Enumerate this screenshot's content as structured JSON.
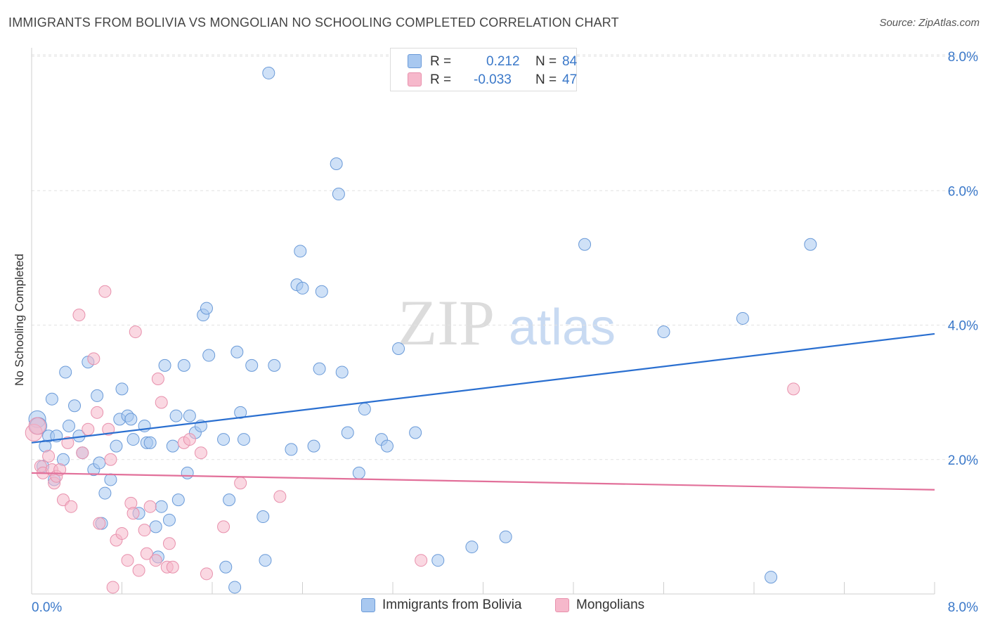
{
  "header": {
    "title": "IMMIGRANTS FROM BOLIVIA VS MONGOLIAN NO SCHOOLING COMPLETED CORRELATION CHART",
    "source": "Source: ZipAtlas.com"
  },
  "watermark": {
    "zip": "ZIP",
    "atlas": "atlas"
  },
  "legend_stats": [
    {
      "r_label": "R =",
      "r_value": "0.212",
      "n_label": "N =",
      "n_value": "84",
      "color": "#a8c8f0"
    },
    {
      "r_label": "R =",
      "r_value": "-0.033",
      "n_label": "N =",
      "n_value": "47",
      "color": "#f6b8cb"
    }
  ],
  "legend": [
    {
      "label": "Immigrants from Bolivia",
      "color": "#a8c8f0"
    },
    {
      "label": "Mongolians",
      "color": "#f6b8cb"
    }
  ],
  "chart_data": {
    "type": "scatter",
    "title": "IMMIGRANTS FROM BOLIVIA VS MONGOLIAN NO SCHOOLING COMPLETED CORRELATION CHART",
    "xlabel": "",
    "ylabel": "No Schooling Completed",
    "xlim": [
      0,
      8
    ],
    "ylim": [
      0,
      8
    ],
    "x_tick_labels": [
      "0.0%",
      "8.0%"
    ],
    "y_tick_labels": [
      "2.0%",
      "4.0%",
      "6.0%",
      "8.0%"
    ],
    "y_ticks": [
      2,
      4,
      6,
      8
    ],
    "grid": true,
    "series": [
      {
        "name": "Immigrants from Bolivia",
        "color": "#a8c8f0",
        "stroke": "#6a9ad8",
        "trend": {
          "x": [
            0,
            8
          ],
          "y": [
            2.25,
            3.87
          ],
          "color": "#2a6fd0"
        },
        "points": [
          [
            0.05,
            2.6
          ],
          [
            0.06,
            2.5
          ],
          [
            0.1,
            1.9
          ],
          [
            0.12,
            2.2
          ],
          [
            0.15,
            2.35
          ],
          [
            0.18,
            2.9
          ],
          [
            0.2,
            1.7
          ],
          [
            0.28,
            2.0
          ],
          [
            0.3,
            3.3
          ],
          [
            0.33,
            2.5
          ],
          [
            0.38,
            2.8
          ],
          [
            0.42,
            2.35
          ],
          [
            0.45,
            2.1
          ],
          [
            0.5,
            3.45
          ],
          [
            0.55,
            1.85
          ],
          [
            0.58,
            2.95
          ],
          [
            0.6,
            1.95
          ],
          [
            0.62,
            1.05
          ],
          [
            0.65,
            1.5
          ],
          [
            0.7,
            1.7
          ],
          [
            0.75,
            2.2
          ],
          [
            0.78,
            2.6
          ],
          [
            0.8,
            3.05
          ],
          [
            0.85,
            2.65
          ],
          [
            0.88,
            2.6
          ],
          [
            0.9,
            2.3
          ],
          [
            0.95,
            1.2
          ],
          [
            1.0,
            2.5
          ],
          [
            1.02,
            2.25
          ],
          [
            1.05,
            2.25
          ],
          [
            1.1,
            1.0
          ],
          [
            1.12,
            0.55
          ],
          [
            1.15,
            1.3
          ],
          [
            1.18,
            3.4
          ],
          [
            1.22,
            1.1
          ],
          [
            1.25,
            2.2
          ],
          [
            1.28,
            2.65
          ],
          [
            1.3,
            1.4
          ],
          [
            1.35,
            3.4
          ],
          [
            1.38,
            1.8
          ],
          [
            1.4,
            2.65
          ],
          [
            1.45,
            2.4
          ],
          [
            1.5,
            2.5
          ],
          [
            1.52,
            4.15
          ],
          [
            1.55,
            4.25
          ],
          [
            1.57,
            3.55
          ],
          [
            1.7,
            2.3
          ],
          [
            1.72,
            0.4
          ],
          [
            1.75,
            1.4
          ],
          [
            1.8,
            0.1
          ],
          [
            1.82,
            3.6
          ],
          [
            1.85,
            2.7
          ],
          [
            1.88,
            2.3
          ],
          [
            1.95,
            3.4
          ],
          [
            2.05,
            1.15
          ],
          [
            2.07,
            0.5
          ],
          [
            2.1,
            7.75
          ],
          [
            2.15,
            3.4
          ],
          [
            2.3,
            2.15
          ],
          [
            2.35,
            4.6
          ],
          [
            2.38,
            5.1
          ],
          [
            2.4,
            4.55
          ],
          [
            2.5,
            2.2
          ],
          [
            2.55,
            3.35
          ],
          [
            2.57,
            4.5
          ],
          [
            2.7,
            6.4
          ],
          [
            2.72,
            5.95
          ],
          [
            2.75,
            3.3
          ],
          [
            2.8,
            2.4
          ],
          [
            2.9,
            1.8
          ],
          [
            2.95,
            2.75
          ],
          [
            3.1,
            2.3
          ],
          [
            3.15,
            2.2
          ],
          [
            3.25,
            3.65
          ],
          [
            3.4,
            2.4
          ],
          [
            3.6,
            0.5
          ],
          [
            3.9,
            0.7
          ],
          [
            4.2,
            0.85
          ],
          [
            4.9,
            5.2
          ],
          [
            5.6,
            3.9
          ],
          [
            6.3,
            4.1
          ],
          [
            6.55,
            0.25
          ],
          [
            6.9,
            5.2
          ],
          [
            0.22,
            2.35
          ]
        ]
      },
      {
        "name": "Mongolians",
        "color": "#f6b8cb",
        "stroke": "#e890ac",
        "trend": {
          "x": [
            0,
            8
          ],
          "y": [
            1.8,
            1.55
          ],
          "color": "#e2709a"
        },
        "points": [
          [
            0.02,
            2.4
          ],
          [
            0.05,
            2.5
          ],
          [
            0.08,
            1.9
          ],
          [
            0.1,
            1.8
          ],
          [
            0.15,
            2.05
          ],
          [
            0.18,
            1.85
          ],
          [
            0.2,
            1.65
          ],
          [
            0.22,
            1.75
          ],
          [
            0.25,
            1.85
          ],
          [
            0.28,
            1.4
          ],
          [
            0.32,
            2.25
          ],
          [
            0.35,
            1.3
          ],
          [
            0.42,
            4.15
          ],
          [
            0.45,
            2.1
          ],
          [
            0.5,
            2.45
          ],
          [
            0.55,
            3.5
          ],
          [
            0.58,
            2.7
          ],
          [
            0.6,
            1.05
          ],
          [
            0.65,
            4.5
          ],
          [
            0.68,
            2.45
          ],
          [
            0.7,
            2.0
          ],
          [
            0.72,
            0.1
          ],
          [
            0.75,
            0.8
          ],
          [
            0.8,
            0.9
          ],
          [
            0.85,
            0.5
          ],
          [
            0.88,
            1.35
          ],
          [
            0.9,
            1.2
          ],
          [
            0.92,
            3.9
          ],
          [
            0.95,
            0.35
          ],
          [
            1.0,
            0.95
          ],
          [
            1.02,
            0.6
          ],
          [
            1.05,
            1.3
          ],
          [
            1.1,
            0.5
          ],
          [
            1.12,
            3.2
          ],
          [
            1.15,
            2.85
          ],
          [
            1.2,
            0.4
          ],
          [
            1.22,
            0.75
          ],
          [
            1.25,
            0.4
          ],
          [
            1.35,
            2.25
          ],
          [
            1.4,
            2.3
          ],
          [
            1.5,
            2.1
          ],
          [
            1.55,
            0.3
          ],
          [
            1.7,
            1.0
          ],
          [
            1.85,
            1.65
          ],
          [
            2.2,
            1.45
          ],
          [
            3.45,
            0.5
          ],
          [
            6.75,
            3.05
          ]
        ]
      }
    ]
  }
}
